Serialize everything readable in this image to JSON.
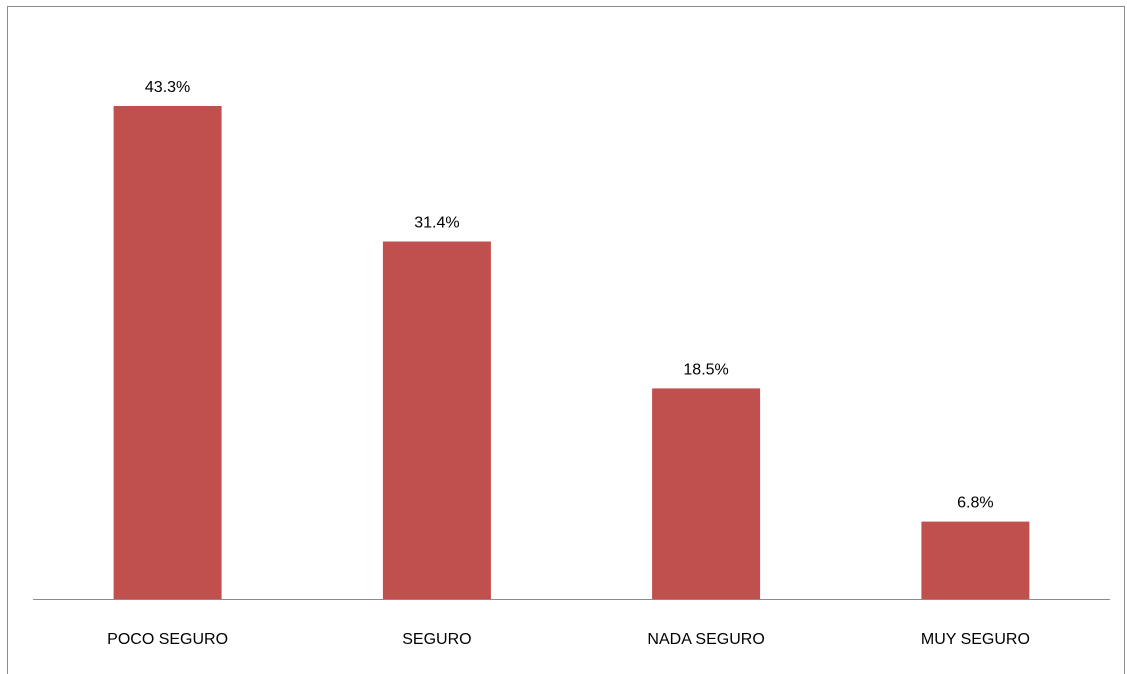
{
  "chart_data": {
    "type": "bar",
    "categories": [
      "POCO SEGURO",
      "SEGURO",
      "NADA SEGURO",
      "MUY SEGURO"
    ],
    "values": [
      43.3,
      31.4,
      18.5,
      6.8
    ],
    "value_labels": [
      "43.3%",
      "31.4%",
      "18.5%",
      "6.8%"
    ],
    "title": "",
    "xlabel": "",
    "ylabel": "",
    "ylim": [
      0,
      50
    ],
    "grid": false,
    "legend": "none",
    "bar_color": "#c0504d"
  }
}
